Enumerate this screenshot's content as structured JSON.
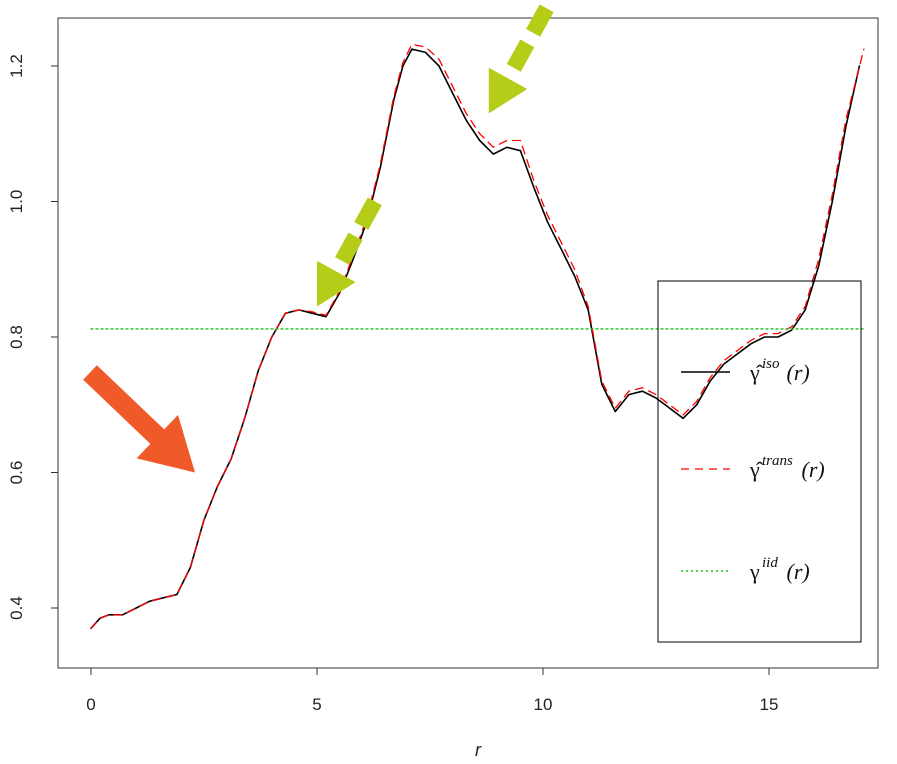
{
  "chart_data": {
    "type": "line",
    "title": "",
    "xlabel": "r",
    "ylabel": "",
    "xlim": [
      0,
      17.2
    ],
    "ylim": [
      0.37,
      1.24
    ],
    "xticks": [
      0,
      5,
      10,
      15
    ],
    "xtick_labels": [
      "0",
      "5",
      "10",
      "15"
    ],
    "yticks": [
      0.4,
      0.6,
      0.8,
      1.0,
      1.2
    ],
    "ytick_labels": [
      "0.4",
      "0.6",
      "0.8",
      "1.0",
      "1.2"
    ],
    "grid": false,
    "legend_position": "bottom-right",
    "series": [
      {
        "name": "iso",
        "color": "#000000",
        "style": "solid",
        "x": [
          0,
          0.2,
          0.4,
          0.7,
          1.0,
          1.3,
          1.6,
          1.9,
          2.2,
          2.5,
          2.8,
          3.1,
          3.4,
          3.7,
          4.0,
          4.3,
          4.6,
          4.9,
          5.2,
          5.5,
          5.8,
          6.1,
          6.4,
          6.7,
          6.9,
          7.1,
          7.4,
          7.7,
          8.0,
          8.3,
          8.6,
          8.9,
          9.2,
          9.5,
          9.8,
          10.1,
          10.4,
          10.7,
          11.0,
          11.3,
          11.6,
          11.9,
          12.2,
          12.5,
          12.8,
          13.1,
          13.4,
          13.7,
          14.0,
          14.3,
          14.6,
          14.9,
          15.2,
          15.5,
          15.8,
          16.1,
          16.4,
          16.7,
          17.0
        ],
        "y": [
          0.37,
          0.385,
          0.39,
          0.39,
          0.4,
          0.41,
          0.415,
          0.42,
          0.46,
          0.53,
          0.58,
          0.62,
          0.68,
          0.75,
          0.8,
          0.835,
          0.84,
          0.835,
          0.83,
          0.865,
          0.915,
          0.97,
          1.05,
          1.15,
          1.2,
          1.225,
          1.22,
          1.2,
          1.16,
          1.12,
          1.09,
          1.07,
          1.08,
          1.075,
          1.02,
          0.97,
          0.93,
          0.89,
          0.84,
          0.73,
          0.69,
          0.715,
          0.72,
          0.71,
          0.695,
          0.68,
          0.7,
          0.735,
          0.76,
          0.775,
          0.79,
          0.8,
          0.8,
          0.81,
          0.84,
          0.905,
          1.0,
          1.11,
          1.2
        ]
      },
      {
        "name": "trans",
        "color": "#ff0000",
        "style": "dashed",
        "x": [
          0,
          0.2,
          0.4,
          0.7,
          1.0,
          1.3,
          1.6,
          1.9,
          2.2,
          2.5,
          2.8,
          3.1,
          3.4,
          3.7,
          4.0,
          4.3,
          4.6,
          4.9,
          5.2,
          5.5,
          5.8,
          6.1,
          6.4,
          6.7,
          6.9,
          7.1,
          7.4,
          7.7,
          8.0,
          8.3,
          8.6,
          8.9,
          9.2,
          9.5,
          9.8,
          10.1,
          10.4,
          10.7,
          11.0,
          11.3,
          11.6,
          11.9,
          12.2,
          12.5,
          12.8,
          13.1,
          13.4,
          13.7,
          14.0,
          14.3,
          14.6,
          14.9,
          15.2,
          15.5,
          15.8,
          16.1,
          16.4,
          16.7,
          17.1
        ],
        "y": [
          0.37,
          0.385,
          0.39,
          0.39,
          0.4,
          0.41,
          0.415,
          0.42,
          0.46,
          0.53,
          0.58,
          0.62,
          0.68,
          0.75,
          0.8,
          0.835,
          0.84,
          0.837,
          0.832,
          0.868,
          0.92,
          0.975,
          1.055,
          1.155,
          1.205,
          1.232,
          1.228,
          1.21,
          1.17,
          1.13,
          1.1,
          1.08,
          1.09,
          1.09,
          1.03,
          0.98,
          0.94,
          0.9,
          0.845,
          0.735,
          0.695,
          0.72,
          0.725,
          0.715,
          0.7,
          0.685,
          0.705,
          0.74,
          0.765,
          0.78,
          0.795,
          0.805,
          0.805,
          0.815,
          0.845,
          0.915,
          1.01,
          1.12,
          1.225
        ]
      },
      {
        "name": "iid",
        "color": "#22bb22",
        "style": "dotted",
        "x": [
          0,
          17.1
        ],
        "y": [
          0.812,
          0.812
        ]
      }
    ],
    "legend": [
      {
        "series": "iso",
        "symbol": "γ̂",
        "sup": "iso",
        "arg": "(r)"
      },
      {
        "series": "trans",
        "symbol": "γ̂",
        "sup": "trans",
        "arg": "(r)"
      },
      {
        "series": "iid",
        "symbol": "γ",
        "sup": "iid",
        "arg": "(r)"
      }
    ],
    "annotations": [
      {
        "type": "arrow",
        "color": "#f05a28",
        "style": "solid",
        "points_to": [
          2.3,
          0.6
        ]
      },
      {
        "type": "arrow",
        "color": "#b5cc18",
        "style": "dashed",
        "points_to": [
          5.0,
          0.845
        ]
      },
      {
        "type": "arrow",
        "color": "#b5cc18",
        "style": "dashed",
        "points_to": [
          8.8,
          1.13
        ]
      }
    ]
  }
}
